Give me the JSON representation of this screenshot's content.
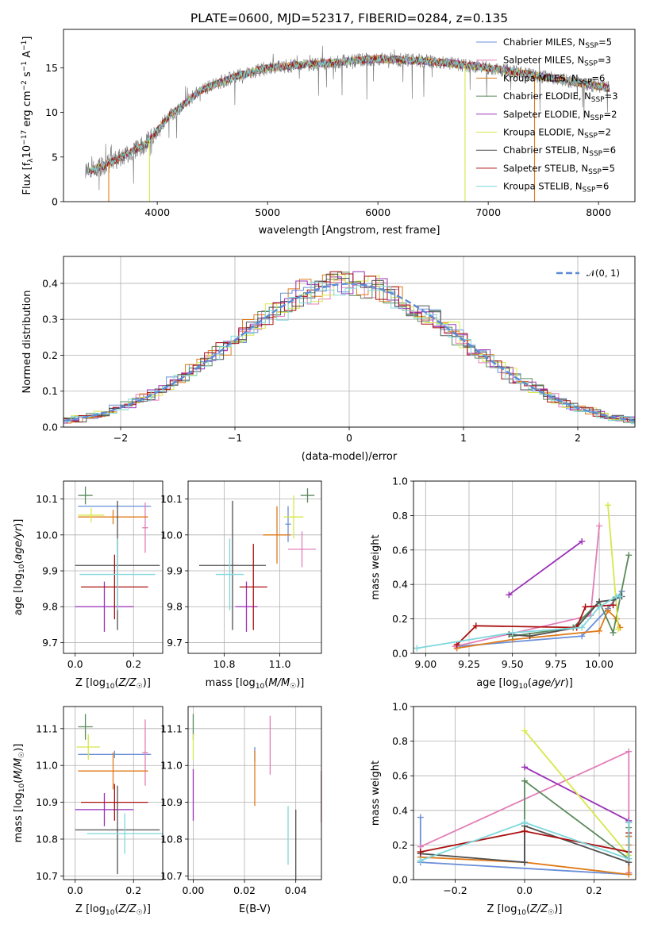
{
  "chart_data": [
    {
      "id": "spectrum",
      "type": "line",
      "title": "PLATE=0600, MJD=52317, FIBERID=0284, z=0.135",
      "xlabel": "wavelength [Angstrom, rest frame]",
      "ylabel": "Flux [f_λ10^-17 erg cm^-2 s^-1 A^-1]",
      "xlim": [
        3150,
        8330
      ],
      "ylim": [
        0,
        19.3
      ],
      "xticks": [
        4000,
        5000,
        6000,
        7000,
        8000
      ],
      "yticks": [
        0,
        5,
        10,
        15
      ],
      "grid": false,
      "legend_position": "top-right",
      "data_range": [
        3350,
        8100
      ],
      "observed_profile": {
        "x": [
          3350,
          3600,
          3900,
          4100,
          4400,
          4700,
          5000,
          5500,
          6000,
          6500,
          7000,
          7500,
          8100
        ],
        "y": [
          3.2,
          4.5,
          6.5,
          9.5,
          12.5,
          14,
          15,
          15.5,
          16,
          15.7,
          15,
          14,
          12.7
        ]
      },
      "series": [
        {
          "name": "Chabrier MILES, N_SSP=5",
          "color": "#6a8fd8"
        },
        {
          "name": "Salpeter MILES, N_SSP=3",
          "color": "#e37eb8"
        },
        {
          "name": "Kroupa MILES, N_SSP=6",
          "color": "#e07b1a"
        },
        {
          "name": "Chabrier ELODIE, N_SSP=3",
          "color": "#5c8a5c"
        },
        {
          "name": "Salpeter ELODIE, N_SSP=2",
          "color": "#9b30b8"
        },
        {
          "name": "Kroupa ELODIE, N_SSP=2",
          "color": "#d6e84a"
        },
        {
          "name": "Chabrier STELIB, N_SSP=6",
          "color": "#505050"
        },
        {
          "name": "Salpeter STELIB, N_SSP=5",
          "color": "#aa1010"
        },
        {
          "name": "Kroupa STELIB, N_SSP=6",
          "color": "#7fd8dc"
        }
      ]
    },
    {
      "id": "residuals",
      "type": "line",
      "title": "",
      "xlabel": "(data-model)/error",
      "ylabel": "Normed distribution",
      "xlim": [
        -2.5,
        2.5
      ],
      "ylim": [
        0,
        0.475
      ],
      "xticks": [
        -2,
        -1,
        0,
        1,
        2
      ],
      "yticks": [
        0.0,
        0.1,
        0.2,
        0.3,
        0.4
      ],
      "grid": true,
      "legend_position": "top-right",
      "reference_series": {
        "name": "𝒩(0, 1)",
        "color": "#5b8bd6",
        "style": "dashed"
      },
      "bin_width": 0.1
    },
    {
      "id": "z-age",
      "type": "scatter",
      "xlabel": "Z [log10(Z/Z☉)]",
      "ylabel": "age  [log10(age/yr)]",
      "xlim": [
        -0.04,
        0.3
      ],
      "ylim": [
        9.67,
        10.15
      ],
      "xticks": [
        0.0,
        0.2
      ],
      "yticks": [
        9.7,
        9.8,
        9.9,
        10.0,
        10.1
      ],
      "grid": true,
      "points": [
        {
          "x": 0.135,
          "xerr": 0.125,
          "y": 10.08,
          "yerr": 0.0,
          "color": "#6a8fd8"
        },
        {
          "x": 0.24,
          "xerr": 0.01,
          "y": 10.02,
          "yerr": 0.07,
          "color": "#e37eb8"
        },
        {
          "x": 0.13,
          "xerr": 0.12,
          "y": 10.05,
          "yerr": 0.02,
          "color": "#e07b1a"
        },
        {
          "x": 0.035,
          "xerr": 0.025,
          "y": 10.11,
          "yerr": 0.025,
          "color": "#5c8a5c"
        },
        {
          "x": 0.1,
          "xerr": 0.1,
          "y": 9.8,
          "yerr": 0.07,
          "color": "#9b30b8"
        },
        {
          "x": 0.055,
          "xerr": 0.045,
          "y": 10.055,
          "yerr": 0.02,
          "color": "#d6e84a"
        },
        {
          "x": 0.145,
          "xerr": 0.145,
          "y": 9.915,
          "yerr": 0.18,
          "color": "#505050"
        },
        {
          "x": 0.135,
          "xerr": 0.115,
          "y": 9.855,
          "yerr": 0.09,
          "color": "#aa1010"
        },
        {
          "x": 0.145,
          "xerr": 0.13,
          "y": 9.89,
          "yerr": 0.1,
          "color": "#7fd8dc"
        }
      ]
    },
    {
      "id": "mass-age",
      "type": "scatter",
      "xlabel": "mass [log10(M/M☉)]",
      "ylabel": "",
      "xlim": [
        10.67,
        11.15
      ],
      "ylim": [
        9.67,
        10.15
      ],
      "xticks": [
        10.8,
        11.0
      ],
      "yticks": [
        9.7,
        9.8,
        9.9,
        10.0,
        10.1
      ],
      "grid": true,
      "points": [
        {
          "x": 11.03,
          "xerr": 0.01,
          "y": 10.03,
          "yerr": 0.05,
          "color": "#6a8fd8"
        },
        {
          "x": 11.08,
          "xerr": 0.05,
          "y": 9.96,
          "yerr": 0.05,
          "color": "#e37eb8"
        },
        {
          "x": 10.99,
          "xerr": 0.05,
          "y": 10.0,
          "yerr": 0.08,
          "color": "#e07b1a"
        },
        {
          "x": 11.1,
          "xerr": 0.025,
          "y": 10.11,
          "yerr": 0.02,
          "color": "#5c8a5c"
        },
        {
          "x": 10.88,
          "xerr": 0.04,
          "y": 9.8,
          "yerr": 0.07,
          "color": "#9b30b8"
        },
        {
          "x": 11.05,
          "xerr": 0.035,
          "y": 10.05,
          "yerr": 0.06,
          "color": "#d6e84a"
        },
        {
          "x": 10.83,
          "xerr": 0.12,
          "y": 9.915,
          "yerr": 0.18,
          "color": "#505050"
        },
        {
          "x": 10.905,
          "xerr": 0.05,
          "y": 9.855,
          "yerr": 0.12,
          "color": "#aa1010"
        },
        {
          "x": 10.82,
          "xerr": 0.05,
          "y": 9.89,
          "yerr": 0.1,
          "color": "#7fd8dc"
        }
      ]
    },
    {
      "id": "age-weight",
      "type": "line",
      "xlabel": "age  [log10(age/yr)]",
      "ylabel": "mass weight",
      "xlim": [
        8.93,
        10.21
      ],
      "ylim": [
        0.0,
        1.0
      ],
      "xticks": [
        9.0,
        9.25,
        9.5,
        9.75,
        10.0
      ],
      "yticks": [
        0.0,
        0.2,
        0.4,
        0.6,
        0.8,
        1.0
      ],
      "grid": true,
      "series": [
        {
          "color": "#6a8fd8",
          "points": [
            [
              9.18,
              0.04
            ],
            [
              9.9,
              0.1
            ],
            [
              10.05,
              0.26
            ],
            [
              10.13,
              0.36
            ]
          ]
        },
        {
          "color": "#e37eb8",
          "points": [
            [
              9.17,
              0.04
            ],
            [
              9.95,
              0.22
            ],
            [
              10.0,
              0.74
            ]
          ]
        },
        {
          "color": "#e07b1a",
          "points": [
            [
              9.18,
              0.03
            ],
            [
              9.5,
              0.08
            ],
            [
              10.0,
              0.13
            ],
            [
              10.05,
              0.25
            ],
            [
              10.1,
              0.2
            ],
            [
              10.12,
              0.15
            ]
          ]
        },
        {
          "color": "#5c8a5c",
          "points": [
            [
              9.5,
              0.1
            ],
            [
              9.85,
              0.15
            ],
            [
              10.0,
              0.3
            ],
            [
              10.08,
              0.12
            ],
            [
              10.17,
              0.57
            ]
          ]
        },
        {
          "color": "#9b30b8",
          "points": [
            [
              9.48,
              0.34
            ],
            [
              9.9,
              0.65
            ]
          ]
        },
        {
          "color": "#d6e84a",
          "points": [
            [
              10.05,
              0.86
            ],
            [
              10.11,
              0.14
            ]
          ]
        },
        {
          "color": "#505050",
          "points": [
            [
              9.48,
              0.11
            ],
            [
              9.6,
              0.1
            ],
            [
              9.87,
              0.15
            ],
            [
              10.0,
              0.3
            ],
            [
              10.08,
              0.31
            ],
            [
              10.13,
              0.33
            ]
          ]
        },
        {
          "color": "#aa1010",
          "points": [
            [
              9.18,
              0.05
            ],
            [
              9.29,
              0.16
            ],
            [
              9.87,
              0.15
            ],
            [
              9.92,
              0.27
            ],
            [
              10.08,
              0.28
            ]
          ]
        },
        {
          "color": "#7fd8dc",
          "points": [
            [
              8.95,
              0.03
            ],
            [
              9.5,
              0.12
            ],
            [
              9.9,
              0.15
            ],
            [
              10.0,
              0.27
            ],
            [
              10.1,
              0.33
            ],
            [
              10.12,
              0.33
            ]
          ]
        }
      ]
    },
    {
      "id": "z-mass",
      "type": "scatter",
      "xlabel": "Z [log10(Z/Z☉)]",
      "ylabel": "mass [log10(M/M☉)]",
      "xlim": [
        -0.04,
        0.3
      ],
      "ylim": [
        10.69,
        11.16
      ],
      "xticks": [
        0.0,
        0.2
      ],
      "yticks": [
        10.7,
        10.8,
        10.9,
        11.0,
        11.1
      ],
      "grid": true,
      "points": [
        {
          "x": 0.135,
          "xerr": 0.125,
          "y": 11.03,
          "yerr": 0.01,
          "color": "#6a8fd8"
        },
        {
          "x": 0.24,
          "xerr": 0.01,
          "y": 11.035,
          "yerr": 0.09,
          "color": "#e37eb8"
        },
        {
          "x": 0.13,
          "xerr": 0.12,
          "y": 10.985,
          "yerr": 0.05,
          "color": "#e07b1a"
        },
        {
          "x": 0.035,
          "xerr": 0.025,
          "y": 11.105,
          "yerr": 0.035,
          "color": "#5c8a5c"
        },
        {
          "x": 0.1,
          "xerr": 0.1,
          "y": 10.88,
          "yerr": 0.045,
          "color": "#9b30b8"
        },
        {
          "x": 0.045,
          "xerr": 0.04,
          "y": 11.05,
          "yerr": 0.035,
          "color": "#d6e84a"
        },
        {
          "x": 0.145,
          "xerr": 0.145,
          "y": 10.825,
          "yerr": 0.12,
          "color": "#505050"
        },
        {
          "x": 0.135,
          "xerr": 0.115,
          "y": 10.9,
          "yerr": 0.05,
          "color": "#aa1010"
        },
        {
          "x": 0.17,
          "xerr": 0.13,
          "y": 10.815,
          "yerr": 0.055,
          "color": "#7fd8dc"
        }
      ]
    },
    {
      "id": "ebv-mass",
      "type": "scatter",
      "xlabel": "E(B-V)",
      "ylabel": "",
      "xlim": [
        -0.002,
        0.05
      ],
      "ylim": [
        10.69,
        11.16
      ],
      "xticks": [
        0.0,
        0.02,
        0.04
      ],
      "yticks": [
        10.7,
        10.8,
        10.9,
        11.0,
        11.1
      ],
      "grid": true,
      "points": [
        {
          "x": 0.024,
          "y": 11.03,
          "yerr": 0.02,
          "color": "#6a8fd8"
        },
        {
          "x": 0.03,
          "y": 11.055,
          "yerr": 0.08,
          "color": "#e37eb8"
        },
        {
          "x": 0.024,
          "y": 10.965,
          "yerr": 0.075,
          "color": "#e07b1a"
        },
        {
          "x": 0.0,
          "y": 11.105,
          "yerr": 0.035,
          "color": "#5c8a5c"
        },
        {
          "x": 0.0,
          "y": 10.92,
          "yerr": 0.07,
          "color": "#9b30b8"
        },
        {
          "x": 0.0,
          "y": 11.05,
          "yerr": 0.035,
          "color": "#d6e84a"
        },
        {
          "x": 0.04,
          "y": 10.76,
          "yerr": 0.12,
          "color": "#505050"
        },
        {
          "x": 0.05,
          "y": 10.915,
          "yerr": 0.07,
          "color": "#aa1010"
        },
        {
          "x": 0.037,
          "y": 10.81,
          "yerr": 0.08,
          "color": "#7fd8dc"
        }
      ]
    },
    {
      "id": "z-weight",
      "type": "line",
      "xlabel": "Z [log10(Z/Z☉)]",
      "ylabel": "mass weight",
      "xlim": [
        -0.32,
        0.32
      ],
      "ylim": [
        0.0,
        1.0
      ],
      "xticks": [
        -0.2,
        0.0,
        0.2
      ],
      "yticks": [
        0.0,
        0.2,
        0.4,
        0.6,
        0.8,
        1.0
      ],
      "grid": true,
      "series": [
        {
          "color": "#6a8fd8",
          "points": [
            [
              -0.3,
              0.36
            ],
            [
              -0.3,
              0.1
            ],
            [
              0.3,
              0.03
            ],
            [
              0.3,
              0.25
            ]
          ]
        },
        {
          "color": "#e37eb8",
          "points": [
            [
              -0.3,
              0.19
            ],
            [
              0.3,
              0.74
            ],
            [
              0.3,
              0.04
            ]
          ]
        },
        {
          "color": "#e07b1a",
          "points": [
            [
              -0.3,
              0.13
            ],
            [
              0.0,
              0.1
            ],
            [
              0.3,
              0.03
            ],
            [
              0.3,
              0.25
            ],
            [
              0.3,
              0.2
            ]
          ]
        },
        {
          "color": "#5c8a5c",
          "points": [
            [
              0.0,
              0.1
            ],
            [
              0.0,
              0.57
            ],
            [
              0.3,
              0.12
            ],
            [
              0.3,
              0.3
            ]
          ]
        },
        {
          "color": "#9b30b8",
          "points": [
            [
              0.0,
              0.65
            ],
            [
              0.3,
              0.34
            ]
          ]
        },
        {
          "color": "#d6e84a",
          "points": [
            [
              0.0,
              0.86
            ],
            [
              0.3,
              0.14
            ]
          ]
        },
        {
          "color": "#505050",
          "points": [
            [
              -0.3,
              0.15
            ],
            [
              0.0,
              0.1
            ],
            [
              0.0,
              0.31
            ],
            [
              0.3,
              0.1
            ],
            [
              0.3,
              0.33
            ]
          ]
        },
        {
          "color": "#aa1010",
          "points": [
            [
              -0.3,
              0.16
            ],
            [
              0.0,
              0.28
            ],
            [
              0.3,
              0.16
            ],
            [
              0.3,
              0.27
            ]
          ]
        },
        {
          "color": "#7fd8dc",
          "points": [
            [
              -0.3,
              0.11
            ],
            [
              0.0,
              0.33
            ],
            [
              0.3,
              0.12
            ],
            [
              0.3,
              0.33
            ]
          ]
        }
      ]
    }
  ]
}
